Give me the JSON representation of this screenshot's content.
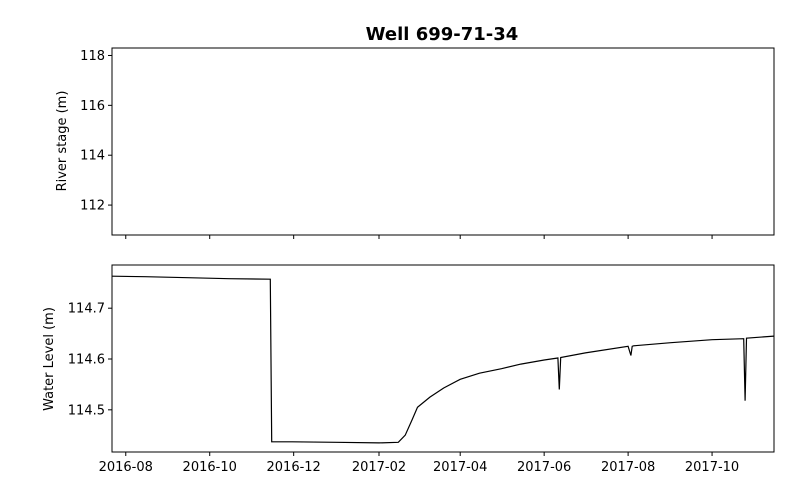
{
  "chart_data": [
    {
      "type": "line",
      "title": "Well 699-71-34",
      "ylabel": "River stage (m)",
      "xlabel": "",
      "ylim": [
        110.8,
        118.3
      ],
      "yticks": [
        "112",
        "114",
        "116",
        "118"
      ],
      "xtick_labels_shown": false,
      "grid": false,
      "series": []
    },
    {
      "type": "line",
      "title": "",
      "ylabel": "Water Level (m)",
      "xlabel": "",
      "ylim": [
        114.417,
        114.785
      ],
      "yticks": [
        "114.5",
        "114.6",
        "114.7"
      ],
      "xlim": [
        "2016-07-22",
        "2017-11-15"
      ],
      "xticks": [
        "2016-08",
        "2016-10",
        "2016-12",
        "2017-02",
        "2017-04",
        "2017-06",
        "2017-08",
        "2017-10"
      ],
      "grid": false,
      "series": [
        {
          "x": [
            "2016-07-22",
            "2016-08-15",
            "2016-09-15",
            "2016-10-15",
            "2016-11-14",
            "2016-11-15",
            "2016-11-30",
            "2017-01-01",
            "2017-02-01",
            "2017-02-15",
            "2017-02-20",
            "2017-02-25",
            "2017-03-01",
            "2017-03-10",
            "2017-03-20",
            "2017-04-01",
            "2017-04-15",
            "2017-05-01",
            "2017-05-15",
            "2017-06-01",
            "2017-06-11",
            "2017-06-12",
            "2017-06-13",
            "2017-07-01",
            "2017-08-01",
            "2017-08-03",
            "2017-08-04",
            "2017-08-05",
            "2017-09-01",
            "2017-10-01",
            "2017-10-24",
            "2017-10-25",
            "2017-10-26",
            "2017-11-15"
          ],
          "y": [
            114.763,
            114.762,
            114.76,
            114.758,
            114.757,
            114.437,
            114.437,
            114.436,
            114.435,
            114.436,
            114.45,
            114.48,
            114.505,
            114.525,
            114.543,
            114.56,
            114.572,
            114.581,
            114.59,
            114.598,
            114.602,
            114.54,
            114.603,
            114.612,
            114.625,
            114.607,
            114.625,
            114.626,
            114.632,
            114.638,
            114.64,
            114.518,
            114.641,
            114.645
          ]
        }
      ]
    }
  ]
}
